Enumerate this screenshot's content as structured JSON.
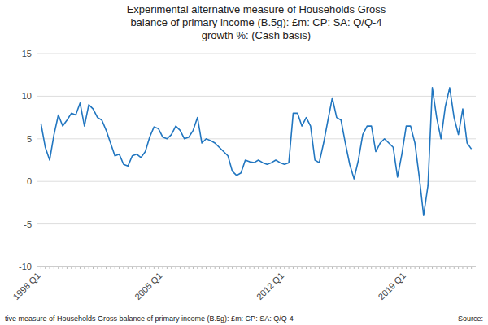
{
  "chart_data": {
    "type": "line",
    "title": "Experimental alternative measure of Households Gross\nbalance of primary income (B.5g): £m: CP: SA: Q/Q-4\ngrowth %: (Cash basis)",
    "annotations": [
      "tive measure of Households Gross balance of primary income (B.5g): £m: CP: SA: Q/Q-4",
      "Source:"
    ],
    "color": "#2176c0",
    "grid": true,
    "ylim": [
      -10,
      15
    ],
    "yticks": [
      -10,
      -5,
      0,
      5,
      10,
      15
    ],
    "categories": [
      "1998 Q1",
      null,
      null,
      null,
      null,
      null,
      null,
      null,
      null,
      null,
      null,
      null,
      null,
      null,
      null,
      null,
      null,
      null,
      null,
      null,
      null,
      null,
      null,
      null,
      null,
      null,
      null,
      null,
      "2005 Q1",
      null,
      null,
      null,
      null,
      null,
      null,
      null,
      null,
      null,
      null,
      null,
      null,
      null,
      null,
      null,
      null,
      null,
      null,
      null,
      null,
      null,
      null,
      null,
      null,
      null,
      null,
      null,
      "2012 Q1",
      null,
      null,
      null,
      null,
      null,
      null,
      null,
      null,
      null,
      null,
      null,
      null,
      null,
      null,
      null,
      null,
      null,
      null,
      null,
      null,
      null,
      null,
      null,
      null,
      null,
      null,
      null,
      "2019 Q1",
      null,
      null,
      null,
      null,
      null,
      null,
      null,
      null,
      null,
      null,
      null,
      null,
      null,
      null,
      null
    ],
    "values": [
      6.8,
      4.0,
      2.5,
      5.5,
      7.8,
      6.5,
      7.2,
      8.0,
      7.8,
      9.2,
      6.5,
      9.0,
      8.5,
      7.5,
      7.2,
      6.0,
      4.5,
      3.0,
      3.2,
      2.0,
      1.8,
      3.0,
      3.2,
      2.8,
      3.5,
      5.2,
      6.4,
      6.2,
      5.2,
      5.0,
      5.5,
      6.5,
      6.0,
      5.0,
      5.2,
      6.0,
      7.5,
      4.5,
      5.0,
      4.8,
      4.5,
      4.0,
      3.5,
      3.0,
      1.2,
      0.7,
      1.0,
      2.5,
      2.3,
      2.2,
      2.5,
      2.2,
      2.0,
      2.2,
      2.5,
      2.2,
      2.0,
      2.2,
      8.0,
      8.0,
      6.5,
      7.5,
      6.5,
      2.5,
      2.2,
      4.5,
      7.2,
      9.8,
      7.5,
      7.2,
      4.5,
      2.0,
      0.3,
      2.5,
      5.5,
      6.5,
      6.5,
      3.5,
      4.5,
      5.0,
      4.5,
      4.0,
      0.5,
      3.2,
      6.5,
      6.5,
      4.5,
      0.5,
      -4.0,
      -0.5,
      11.0,
      7.5,
      5.0,
      8.8,
      11.0,
      7.5,
      5.5,
      8.5,
      4.5,
      3.8
    ]
  }
}
